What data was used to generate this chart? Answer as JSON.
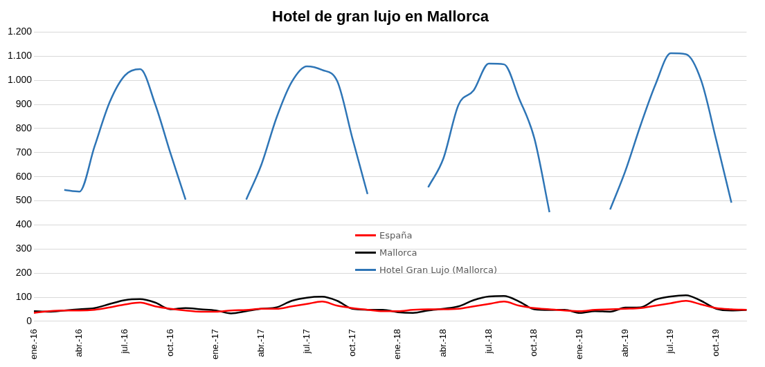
{
  "chart_data": {
    "type": "line",
    "title": "Hotel de gran lujo en Mallorca",
    "categories": [
      "ene.-16",
      null,
      null,
      "abr.-16",
      null,
      null,
      "jul.-16",
      null,
      null,
      "oct.-16",
      null,
      null,
      "ene.-17",
      null,
      null,
      "abr.-17",
      null,
      null,
      "jul.-17",
      null,
      null,
      "oct.-17",
      null,
      null,
      "ene.-18",
      null,
      null,
      "abr.-18",
      null,
      null,
      "jul.-18",
      null,
      null,
      "oct.-18",
      null,
      null,
      "ene.-19",
      null,
      null,
      "abr.-19",
      null,
      null,
      "jul.-19",
      null,
      null,
      "oct.-19",
      null,
      null
    ],
    "series": [
      {
        "name": "España",
        "color": "#ff0000",
        "values": [
          35,
          42,
          45,
          45,
          48,
          58,
          70,
          78,
          62,
          52,
          45,
          40,
          40,
          45,
          47,
          52,
          52,
          62,
          72,
          82,
          65,
          55,
          48,
          42,
          42,
          48,
          50,
          50,
          52,
          62,
          72,
          82,
          65,
          55,
          50,
          45,
          42,
          48,
          50,
          52,
          55,
          65,
          75,
          85,
          70,
          55,
          50,
          48
        ]
      },
      {
        "name": "Mallorca",
        "color": "#000000",
        "values": [
          42,
          40,
          45,
          50,
          55,
          72,
          88,
          92,
          78,
          50,
          55,
          50,
          45,
          33,
          42,
          52,
          58,
          85,
          98,
          102,
          85,
          52,
          48,
          48,
          38,
          35,
          45,
          52,
          62,
          88,
          103,
          105,
          82,
          50,
          47,
          48,
          35,
          42,
          40,
          57,
          58,
          90,
          103,
          108,
          85,
          52,
          45,
          47
        ]
      },
      {
        "name": "Hotel Gran Lujo (Mallorca)",
        "color": "#2e75b6",
        "values": [
          null,
          null,
          545,
          538,
          726,
          910,
          1020,
          1046,
          900,
          698,
          505,
          null,
          null,
          null,
          505,
          650,
          845,
          993,
          1058,
          1043,
          997,
          760,
          528,
          null,
          null,
          null,
          556,
          675,
          898,
          958,
          1069,
          1066,
          924,
          760,
          453,
          null,
          null,
          null,
          464,
          623,
          812,
          984,
          1112,
          1108,
          1000,
          752,
          492,
          null
        ]
      }
    ],
    "ylim": [
      0,
      1200
    ],
    "yticks": [
      0,
      100,
      200,
      300,
      400,
      500,
      600,
      700,
      800,
      900,
      {
        "value": 1000,
        "label": "1.000"
      },
      {
        "value": 1100,
        "label": "1.100"
      },
      {
        "value": 1200,
        "label": "1.200"
      }
    ],
    "grid": "y",
    "legend": "center"
  }
}
